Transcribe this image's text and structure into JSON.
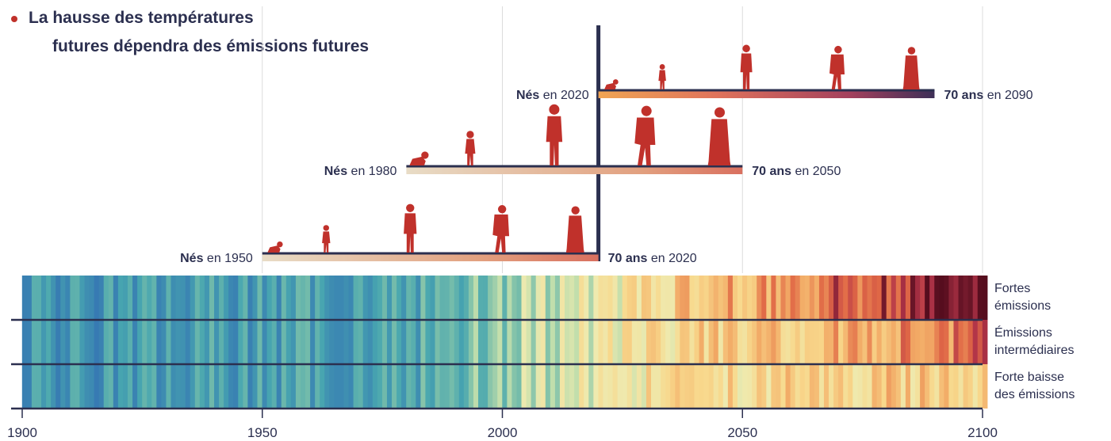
{
  "title": {
    "line1": "La hausse des températures",
    "line2": "futures dépendra des émissions futures"
  },
  "colors": {
    "text": "#2b2f4f",
    "accent": "#c0312b",
    "grid": "#dcdcdc",
    "stripe_cold": "#2f5fb5",
    "stripe_hot": "#5a0d1e"
  },
  "chart_data": {
    "type": "heatmap",
    "description_type": "climate warming stripes with life-span timelines",
    "x_axis": {
      "range": [
        1900,
        2100
      ],
      "ticks": [
        1900,
        1950,
        2000,
        2050,
        2100
      ],
      "tick_labels": [
        "1900",
        "1950",
        "2000",
        "2050",
        "2100"
      ],
      "gridlines": [
        1950,
        2000,
        2050,
        2100
      ]
    },
    "current_year_marker": 2020,
    "scenarios": [
      {
        "label_lines": [
          "Fortes",
          "émissions"
        ],
        "future_trend": "high"
      },
      {
        "label_lines": [
          "Émissions",
          "intermédiaires"
        ],
        "future_trend": "intermediate"
      },
      {
        "label_lines": [
          "Forte baisse",
          "des émissions"
        ],
        "future_trend": "low"
      }
    ],
    "lifespans": [
      {
        "born_prefix": "Nés",
        "born_suffix": "en 1950",
        "born": 1950,
        "age_prefix": "70 ans",
        "age_suffix": "en 2020",
        "end": 2020
      },
      {
        "born_prefix": "Nés",
        "born_suffix": "en 1980",
        "born": 1980,
        "age_prefix": "70 ans",
        "age_suffix": "en 2050",
        "end": 2050
      },
      {
        "born_prefix": "Nés",
        "born_suffix": "en 2020",
        "born": 2020,
        "age_prefix": "70 ans",
        "age_suffix": "en 2090",
        "end": 2090
      }
    ],
    "life_stages": [
      "baby",
      "child",
      "adult",
      "older-adult",
      "elderly"
    ]
  }
}
